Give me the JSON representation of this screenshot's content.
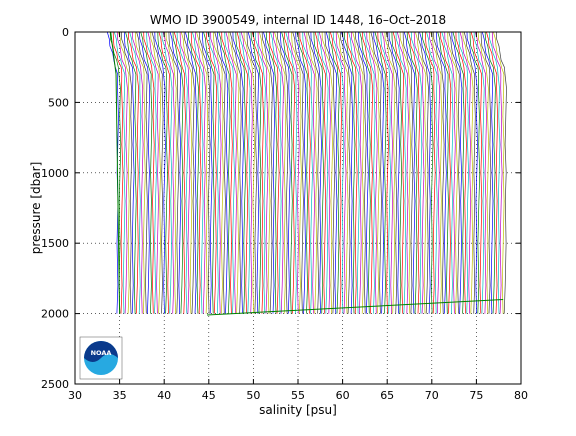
{
  "chart_data": {
    "type": "line",
    "title": "WMO ID 3900549, internal ID 1448, 16–Oct–2018",
    "xlabel": "salinity [psu]",
    "ylabel": "pressure [dbar]",
    "xlim": [
      30,
      80
    ],
    "ylim": [
      0,
      2500
    ],
    "y_reversed": true,
    "grid": true,
    "x_ticks": [
      "30",
      "35",
      "40",
      "45",
      "50",
      "55",
      "60",
      "65",
      "70",
      "75",
      "80"
    ],
    "y_ticks": [
      "0",
      "500",
      "1000",
      "1500",
      "2000",
      "2500"
    ],
    "profile_offsets": {
      "description_of_data": "waterfall of salinity profiles, each offset by a constant salinity step",
      "start": 34.7,
      "step": 0.25,
      "count": 175
    },
    "profile_shape": {
      "pressure": [
        0,
        50,
        100,
        150,
        200,
        250,
        300,
        400,
        600,
        800,
        1000,
        1200,
        1500,
        1800,
        2000
      ],
      "salinity_anomaly": [
        -1.0,
        -0.9,
        -0.75,
        -0.55,
        -0.35,
        -0.1,
        0.05,
        0.1,
        0.1,
        0.1,
        0.1,
        0.08,
        0.05,
        0.03,
        0.0
      ]
    },
    "colors": [
      "#0000ff",
      "#008000",
      "#ff0000",
      "#00bfbf",
      "#bf00bf",
      "#bfbf00",
      "#404040"
    ],
    "bottom_line": {
      "x": [
        44.8,
        78.0
      ],
      "y": [
        2010,
        1900
      ],
      "color": "#008000"
    },
    "edge_line": {
      "x": [
        34.0,
        34.6,
        35.0
      ],
      "y": [
        0,
        300,
        2000
      ],
      "color": "#008000"
    },
    "logo": {
      "text": "NOAA",
      "colors": [
        "#0a3a8c",
        "#27a9e1",
        "#ffffff"
      ]
    }
  }
}
